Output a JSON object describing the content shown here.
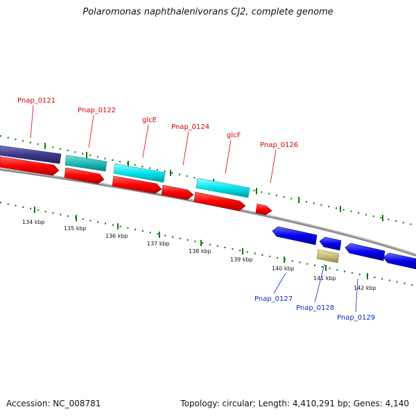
{
  "title": "Polaromonas naphthalenivorans CJ2, complete genome",
  "footer": {
    "accession": "Accession: NC_008781",
    "topology": "Topology: circular; Length: 4,410,291 bp; Genes: 4,140"
  },
  "colors": {
    "forward_label": "#d40000",
    "reverse_label": "#0a2bc4",
    "cds_forward": "#ff0000",
    "cds_reverse": "#0000ee",
    "gene_cyan": "#00e5ee",
    "gene_teal": "#1fbcbc",
    "gene_purple": "#3e3a8a",
    "gene_khaki": "#c9bf7a",
    "tick": "#0a7a0a",
    "backbone": "#888888"
  },
  "gene_labels": {
    "pnap0121": "Pnap_0121",
    "pnap0122": "Pnap_0122",
    "glcE": "glcE",
    "pnap0124": "Pnap_0124",
    "glcF": "glcF",
    "pnap0126": "Pnap_0126",
    "pnap0127": "Pnap_0127",
    "pnap0128": "Pnap_0128",
    "pnap0129": "Pnap_0129"
  },
  "kbp_labels": [
    "134 kbp",
    "135 kbp",
    "136 kbp",
    "137 kbp",
    "138 kbp",
    "139 kbp",
    "140 kbp",
    "141 kbp",
    "142 kbp"
  ]
}
